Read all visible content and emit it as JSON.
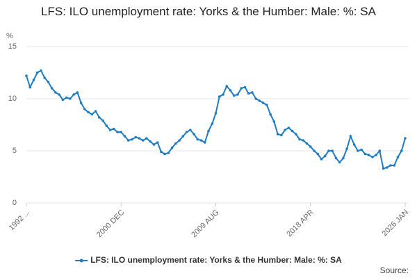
{
  "chart_data": {
    "type": "line",
    "title": "LFS: ILO unemployment rate: Yorks & the Humber: Male: %: SA",
    "y_label": "%",
    "source": "Source:",
    "categories": [
      "1992 ...",
      null,
      null,
      null,
      null,
      null,
      null,
      null,
      null,
      null,
      null,
      null,
      null,
      null,
      null,
      null,
      null,
      null,
      null,
      null,
      null,
      null,
      null,
      null,
      null,
      null,
      "2000 DEC",
      null,
      null,
      null,
      null,
      null,
      null,
      null,
      null,
      null,
      null,
      null,
      null,
      null,
      null,
      null,
      null,
      null,
      null,
      null,
      null,
      null,
      null,
      null,
      null,
      null,
      "2009 AUG",
      null,
      null,
      null,
      null,
      null,
      null,
      null,
      null,
      null,
      null,
      null,
      null,
      null,
      null,
      null,
      null,
      null,
      null,
      null,
      null,
      null,
      null,
      null,
      null,
      null,
      "2018 APR",
      null,
      null,
      null,
      null,
      null,
      null,
      null,
      null,
      null,
      null,
      null,
      null,
      null,
      null,
      null,
      null,
      null,
      null,
      null,
      null,
      null,
      null,
      null,
      null,
      null,
      "2026 JAN"
    ],
    "series": [
      {
        "name": "LFS: ILO unemployment rate: Yorks & the Humber: Male: %: SA",
        "color": "#1f7cc0",
        "values": [
          12.2,
          11.1,
          11.8,
          12.5,
          12.7,
          12.0,
          11.6,
          11.0,
          10.6,
          10.4,
          9.9,
          10.1,
          10.0,
          10.4,
          10.6,
          9.6,
          9.0,
          8.7,
          8.5,
          8.8,
          8.2,
          7.9,
          7.4,
          7.0,
          7.1,
          6.8,
          6.8,
          6.4,
          6.0,
          6.1,
          6.3,
          6.2,
          6.0,
          6.2,
          5.9,
          5.6,
          5.8,
          4.9,
          4.7,
          4.8,
          5.3,
          5.7,
          6.0,
          6.4,
          6.8,
          7.0,
          6.6,
          6.1,
          6.0,
          5.8,
          6.9,
          7.6,
          8.6,
          10.2,
          10.4,
          11.2,
          10.8,
          10.3,
          10.4,
          11.0,
          11.1,
          10.5,
          10.6,
          10.0,
          9.8,
          9.6,
          9.4,
          8.5,
          7.8,
          6.6,
          6.5,
          7.0,
          7.2,
          6.9,
          6.6,
          6.1,
          6.0,
          5.7,
          5.4,
          5.0,
          4.7,
          4.2,
          4.5,
          5.0,
          5.0,
          4.3,
          3.9,
          4.3,
          5.2,
          6.4,
          5.6,
          5.0,
          5.1,
          4.7,
          4.6,
          4.4,
          4.6,
          5.0,
          3.3,
          3.4,
          3.6,
          3.6,
          4.4,
          5.0,
          6.2
        ]
      }
    ],
    "ylim": [
      0,
      15
    ],
    "yticks": [
      0,
      5,
      10,
      15
    ],
    "grid": true
  }
}
